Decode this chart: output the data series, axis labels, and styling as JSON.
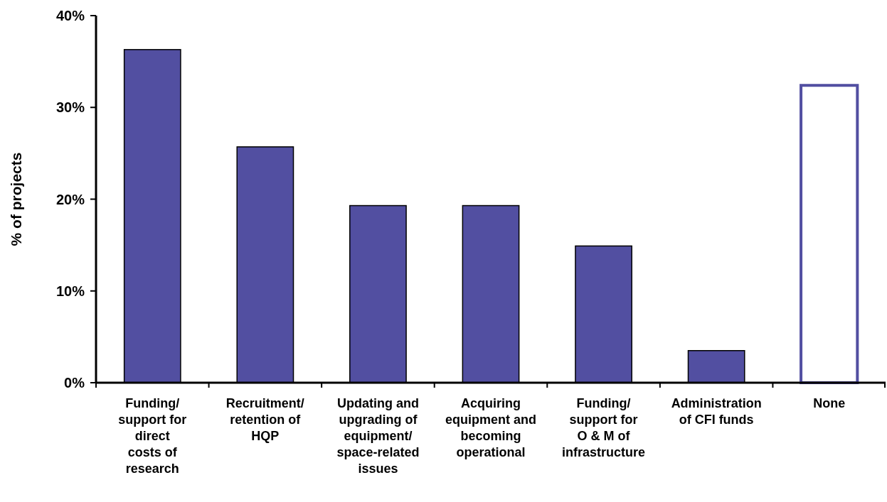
{
  "chart_data": {
    "type": "bar",
    "ylabel": "% of projects",
    "categories": [
      "Funding/\nsupport for\ndirect\ncosts of\nresearch",
      "Recruitment/\nretention of\nHQP",
      "Updating and\nupgrading of\nequipment/\nspace-related\nissues",
      "Acquiring\nequipment and\nbecoming\noperational",
      "Funding/\nsupport for\nO & M of\ninfrastructure",
      "Administration\nof CFI funds",
      "None"
    ],
    "values": [
      36.3,
      25.7,
      19.3,
      19.3,
      14.9,
      3.5,
      32.4
    ],
    "color": "#524fa1",
    "colors": [
      "#524fa1",
      "#524fa1",
      "#524fa1",
      "#524fa1",
      "#524fa1",
      "#524fa1",
      "#ffffff"
    ],
    "ylim": [
      0,
      40
    ],
    "yticks": [
      {
        "value": 0,
        "label": "0%"
      },
      {
        "value": 10,
        "label": "10%"
      },
      {
        "value": 20,
        "label": "20%"
      },
      {
        "value": 30,
        "label": "30%"
      },
      {
        "value": 40,
        "label": "40%"
      }
    ],
    "grid": false
  }
}
